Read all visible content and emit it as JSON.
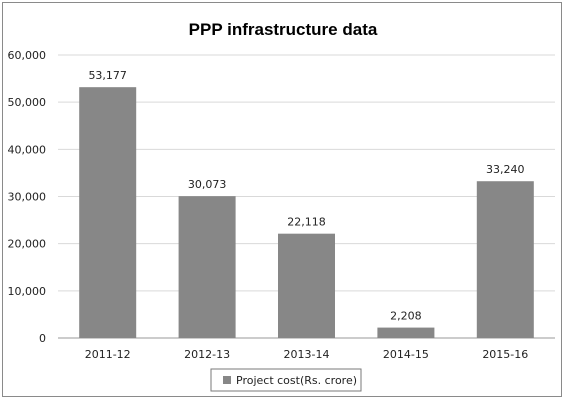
{
  "chart_data": {
    "type": "bar",
    "title": "PPP infrastructure data",
    "categories": [
      "2011-12",
      "2012-13",
      "2013-14",
      "2014-15",
      "2015-16"
    ],
    "series": [
      {
        "name": "Project cost(Rs. crore)",
        "values": [
          53177,
          30073,
          22118,
          2208,
          33240
        ]
      }
    ],
    "data_labels": [
      "53,177",
      "30,073",
      "22,118",
      "2,208",
      "33,240"
    ],
    "y_ticks": [
      "0",
      "10,000",
      "20,000",
      "30,000",
      "40,000",
      "50,000",
      "60,000"
    ],
    "ylim": [
      0,
      60000
    ],
    "grid": true,
    "legend_position": "bottom",
    "colors": {
      "bar": "#878787",
      "grid": "#d9d9d9",
      "axis": "#9a9a9a"
    }
  }
}
